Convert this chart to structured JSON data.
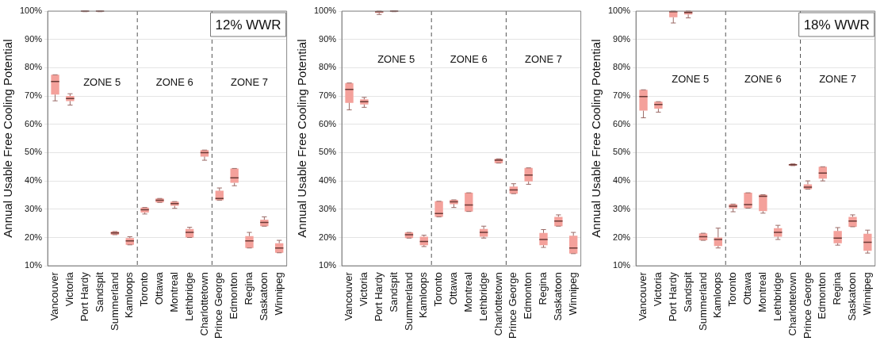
{
  "chart_data": [
    {
      "type": "box",
      "title": "12% WWR",
      "ylabel": "Annual Usable Free Cooling Potential",
      "categories": [
        "Vancouver",
        "Victoria",
        "Port Hardy",
        "Sandspit",
        "Summerland",
        "Kamloops",
        "Toronto",
        "Ottawa",
        "Montreal",
        "Lethbridge",
        "Charlottetown",
        "Prince George",
        "Edmonton",
        "Regina",
        "Saskatoon",
        "Winnipeg"
      ],
      "color": "#f4a19b",
      "ylim": [
        10,
        100
      ],
      "yticks": [
        {
          "value": 10,
          "label": "10%"
        },
        {
          "value": 20,
          "label": "20%"
        },
        {
          "value": 30,
          "label": "30%"
        },
        {
          "value": 40,
          "label": "40%"
        },
        {
          "value": 50,
          "label": "50%"
        },
        {
          "value": 60,
          "label": "60%"
        },
        {
          "value": 70,
          "label": "70%"
        },
        {
          "value": 80,
          "label": "80%"
        },
        {
          "value": 90,
          "label": "90%"
        },
        {
          "value": 100,
          "label": "100%"
        }
      ],
      "grid": "y",
      "annotations": [
        "ZONE 5",
        "ZONE 6",
        "ZONE 7"
      ],
      "boxes": [
        {
          "low": 68.3,
          "q1": 70.5,
          "median": 75.1,
          "q3": 77.5,
          "high": 77.5
        },
        {
          "low": 66.8,
          "q1": 68.2,
          "median": 69.1,
          "q3": 70,
          "high": 70.8
        },
        {
          "low": 99.8,
          "q1": 99.8,
          "median": 100,
          "q3": 100,
          "high": 100
        },
        {
          "low": 99.8,
          "q1": 99.8,
          "median": 100,
          "q3": 100,
          "high": 100
        },
        {
          "low": 21,
          "q1": 21,
          "median": 21.6,
          "q3": 22.1,
          "high": 22.1
        },
        {
          "low": 17.4,
          "q1": 17.4,
          "median": 18.8,
          "q3": 19.8,
          "high": 20.3
        },
        {
          "low": 28.3,
          "q1": 28.8,
          "median": 29.8,
          "q3": 30.6,
          "high": 30.6
        },
        {
          "low": 32.4,
          "q1": 32.4,
          "median": 33.2,
          "q3": 33.8,
          "high": 33.8
        },
        {
          "low": 30.3,
          "q1": 31.2,
          "median": 32,
          "q3": 32.7,
          "high": 32.7
        },
        {
          "low": 20,
          "q1": 20,
          "median": 21.8,
          "q3": 23,
          "high": 23.6
        },
        {
          "low": 47.3,
          "q1": 48.6,
          "median": 50,
          "q3": 50.9,
          "high": 50.9
        },
        {
          "low": 33.2,
          "q1": 33.2,
          "median": 33.8,
          "q3": 36.5,
          "high": 37.5
        },
        {
          "low": 38.3,
          "q1": 39.3,
          "median": 41.1,
          "q3": 44.4,
          "high": 44.4
        },
        {
          "low": 16.3,
          "q1": 16.3,
          "median": 18.8,
          "q3": 20.5,
          "high": 21.8
        },
        {
          "low": 24,
          "q1": 24,
          "median": 25.3,
          "q3": 26.3,
          "high": 27.3
        },
        {
          "low": 14.6,
          "q1": 14.6,
          "median": 16.3,
          "q3": 18,
          "high": 19
        }
      ]
    },
    {
      "type": "box",
      "ylabel": "Annual Usable Free Cooling Potential",
      "categories": [
        "Vancouver",
        "Victoria",
        "Port Hardy",
        "Sandspit",
        "Summerland",
        "Kamloops",
        "Toronto",
        "Ottawa",
        "Montreal",
        "Lethbridge",
        "Charlottetown",
        "Prince George",
        "Edmonton",
        "Regina",
        "Saskatoon",
        "Winnipeg"
      ],
      "color": "#f4a19b",
      "ylim": [
        10,
        100
      ],
      "yticks": [
        {
          "value": 10,
          "label": "10%"
        },
        {
          "value": 20,
          "label": "20%"
        },
        {
          "value": 30,
          "label": "30%"
        },
        {
          "value": 40,
          "label": "40%"
        },
        {
          "value": 50,
          "label": "50%"
        },
        {
          "value": 60,
          "label": "60%"
        },
        {
          "value": 70,
          "label": "70%"
        },
        {
          "value": 80,
          "label": "80%"
        },
        {
          "value": 90,
          "label": "90%"
        },
        {
          "value": 100,
          "label": "100%"
        }
      ],
      "grid": "y",
      "annotations": [
        "ZONE 5",
        "ZONE 6",
        "ZONE 7"
      ],
      "boxes": [
        {
          "low": 65.1,
          "q1": 67.6,
          "median": 72.3,
          "q3": 74.6,
          "high": 74.6
        },
        {
          "low": 66,
          "q1": 67,
          "median": 68,
          "q3": 68.8,
          "high": 69.5
        },
        {
          "low": 98.8,
          "q1": 99.4,
          "median": 99.8,
          "q3": 100,
          "high": 100
        },
        {
          "low": 99.8,
          "q1": 99.8,
          "median": 100,
          "q3": 100,
          "high": 100
        },
        {
          "low": 19.8,
          "q1": 19.8,
          "median": 21,
          "q3": 21.8,
          "high": 21.8
        },
        {
          "low": 16.8,
          "q1": 17.3,
          "median": 18.6,
          "q3": 20.3,
          "high": 20.8
        },
        {
          "low": 27.3,
          "q1": 27.3,
          "median": 28.5,
          "q3": 32.8,
          "high": 32.8
        },
        {
          "low": 30.6,
          "q1": 31.8,
          "median": 32.6,
          "q3": 33.3,
          "high": 33.3
        },
        {
          "low": 29.2,
          "q1": 29.2,
          "median": 31.5,
          "q3": 35.8,
          "high": 35.8
        },
        {
          "low": 19.8,
          "q1": 20.3,
          "median": 21.8,
          "q3": 23,
          "high": 24
        },
        {
          "low": 46.3,
          "q1": 46.3,
          "median": 47.3,
          "q3": 47.8,
          "high": 47.8
        },
        {
          "low": 35.5,
          "q1": 35.5,
          "median": 36.8,
          "q3": 38,
          "high": 39
        },
        {
          "low": 38.8,
          "q1": 39.8,
          "median": 42.1,
          "q3": 44.6,
          "high": 44.6
        },
        {
          "low": 16.5,
          "q1": 17.3,
          "median": 19.3,
          "q3": 21.6,
          "high": 22.8
        },
        {
          "low": 24,
          "q1": 24,
          "median": 25.8,
          "q3": 27.3,
          "high": 28
        },
        {
          "low": 14.3,
          "q1": 14.3,
          "median": 16.3,
          "q3": 20.6,
          "high": 21.8
        }
      ]
    },
    {
      "type": "box",
      "title": "18% WWR",
      "ylabel": "Annual Usable Free Cooling Potential",
      "categories": [
        "Vancouver",
        "Victoria",
        "Port Hardy",
        "Sandspit",
        "Summerland",
        "Kamloops",
        "Toronto",
        "Ottawa",
        "Montreal",
        "Lethbridge",
        "Charlottetown",
        "Prince George",
        "Edmonton",
        "Regina",
        "Saskatoon",
        "Winnipeg"
      ],
      "color": "#f4a19b",
      "ylim": [
        10,
        100
      ],
      "yticks": [
        {
          "value": 10,
          "label": "10%"
        },
        {
          "value": 20,
          "label": "20%"
        },
        {
          "value": 30,
          "label": "30%"
        },
        {
          "value": 40,
          "label": "40%"
        },
        {
          "value": 50,
          "label": "50%"
        },
        {
          "value": 60,
          "label": "60%"
        },
        {
          "value": 70,
          "label": "70%"
        },
        {
          "value": 80,
          "label": "80%"
        },
        {
          "value": 90,
          "label": "90%"
        },
        {
          "value": 100,
          "label": "100%"
        }
      ],
      "grid": "y",
      "annotations": [
        "ZONE 5",
        "ZONE 6",
        "ZONE 7"
      ],
      "boxes": [
        {
          "low": 62.3,
          "q1": 64.8,
          "median": 69.8,
          "q3": 72.2,
          "high": 72.2
        },
        {
          "low": 64.3,
          "q1": 65.5,
          "median": 67,
          "q3": 68,
          "high": 68
        },
        {
          "low": 95.8,
          "q1": 97.8,
          "median": 99.8,
          "q3": 100,
          "high": 100
        },
        {
          "low": 97.6,
          "q1": 98.8,
          "median": 99.5,
          "q3": 100,
          "high": 100
        },
        {
          "low": 19,
          "q1": 19,
          "median": 20.3,
          "q3": 21.5,
          "high": 21.5
        },
        {
          "low": 16.3,
          "q1": 17,
          "median": 19.3,
          "q3": 20,
          "high": 23.3
        },
        {
          "low": 29.1,
          "q1": 30.3,
          "median": 31.1,
          "q3": 31.8,
          "high": 31.8
        },
        {
          "low": 30.4,
          "q1": 30.4,
          "median": 31.6,
          "q3": 35.8,
          "high": 35.8
        },
        {
          "low": 28.6,
          "q1": 29.3,
          "median": 34.6,
          "q3": 35.1,
          "high": 35.1
        },
        {
          "low": 19.3,
          "q1": 20.3,
          "median": 21.8,
          "q3": 23.3,
          "high": 24.3
        },
        {
          "low": 45.4,
          "q1": 45.4,
          "median": 45.7,
          "q3": 46,
          "high": 46
        },
        {
          "low": 37.1,
          "q1": 37.1,
          "median": 37.8,
          "q3": 38.8,
          "high": 40
        },
        {
          "low": 40,
          "q1": 40.8,
          "median": 42.8,
          "q3": 45,
          "high": 45
        },
        {
          "low": 17.3,
          "q1": 18,
          "median": 19.8,
          "q3": 22.3,
          "high": 23.5
        },
        {
          "low": 23.8,
          "q1": 23.8,
          "median": 25.8,
          "q3": 27.3,
          "high": 28
        },
        {
          "low": 14.5,
          "q1": 15.3,
          "median": 18.3,
          "q3": 21.3,
          "high": 22.6
        }
      ]
    }
  ]
}
